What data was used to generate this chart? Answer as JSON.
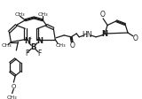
{
  "background_color": "#ffffff",
  "structure_color": "#1a1a1a",
  "line_width": 0.9,
  "font_size": 5.5,
  "figsize": [
    1.6,
    1.12
  ],
  "dpi": 100,
  "xlim": [
    0,
    160
  ],
  "ylim": [
    0,
    112
  ]
}
